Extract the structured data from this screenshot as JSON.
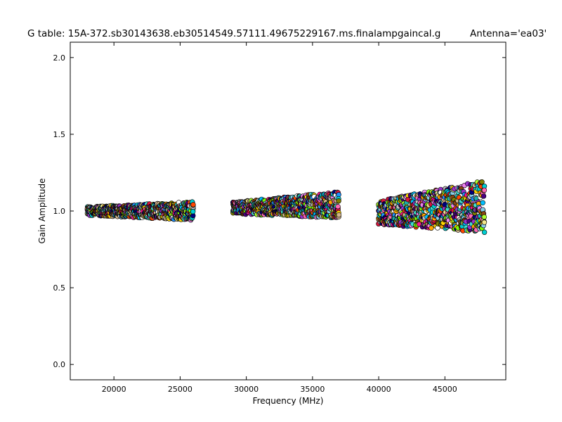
{
  "chart_data": {
    "type": "scatter",
    "title": "G table: 15A-372.sb30143638.eb30514549.57111.49675229167.ms.finalampgaincal.g",
    "subtitle": "Antenna='ea03'",
    "xlabel": "Frequency (MHz)",
    "ylabel": "Gain Amplitude",
    "xlim": [
      16700,
      49600
    ],
    "ylim": [
      -0.1,
      2.1
    ],
    "x_ticks": [
      "20000",
      "25000",
      "30000",
      "35000",
      "40000",
      "45000"
    ],
    "y_ticks": [
      "0.0",
      "0.5",
      "1.0",
      "1.5",
      "2.0"
    ],
    "grid": false,
    "marker": "circle",
    "bands": [
      {
        "x_range": [
          18000,
          26000
        ],
        "y_center": 1.0,
        "y_spread": [
          0.94,
          1.06
        ],
        "trend": 0.0
      },
      {
        "x_range": [
          29000,
          37000
        ],
        "y_center": 1.03,
        "y_spread": [
          0.94,
          1.11
        ],
        "trend": 0.02
      },
      {
        "x_range": [
          40000,
          48000
        ],
        "y_center": 1.01,
        "y_spread": [
          0.86,
          1.2
        ],
        "trend": 0.04
      }
    ],
    "colors": [
      "#ffffff",
      "#87ceeb",
      "#ff1493",
      "#7fff00",
      "#ffa500",
      "#00bfff",
      "#9932cc",
      "#ffd700",
      "#ff4500",
      "#adff2f",
      "#1e90ff",
      "#d2b48c",
      "#00ced1",
      "#ff69b4",
      "#808000",
      "#4b0082",
      "#20b2aa",
      "#dc143c",
      "#f0e68c",
      "#40e0d0",
      "#ee82ee",
      "#c0c0c0",
      "#8b4513",
      "#000080"
    ]
  }
}
